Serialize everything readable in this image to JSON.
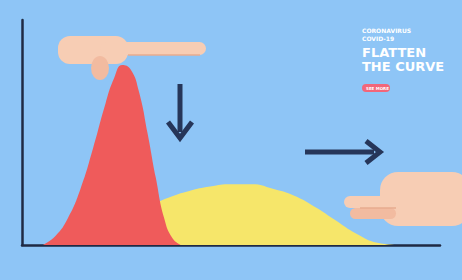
{
  "chart_data": {
    "type": "area",
    "title": "FLATTEN\nTHE CURVE",
    "subtitle": "CORONAVIRUS\nCOVID-19",
    "annotations": [
      "SEE MORE"
    ],
    "xlim": [
      0,
      100
    ],
    "ylim": [
      0,
      100
    ],
    "tick_labels": false,
    "grid": false,
    "series": [
      {
        "color": "#f6e66a",
        "x": [
          5,
          10,
          15,
          20,
          25,
          30,
          35,
          40,
          45,
          50,
          55,
          60,
          65,
          70,
          75,
          80,
          85,
          90
        ],
        "values": [
          0,
          2,
          5,
          9,
          13,
          17,
          21,
          24,
          26,
          27,
          27,
          25,
          22,
          17,
          11,
          5,
          1,
          0
        ]
      },
      {
        "color": "#ef5b5b",
        "x": [
          5,
          8,
          11,
          14,
          17,
          20,
          22,
          24,
          26,
          28,
          30,
          32,
          34,
          36,
          38
        ],
        "values": [
          0,
          4,
          12,
          25,
          43,
          63,
          74,
          80,
          78,
          68,
          50,
          30,
          12,
          3,
          0
        ]
      }
    ]
  }
}
